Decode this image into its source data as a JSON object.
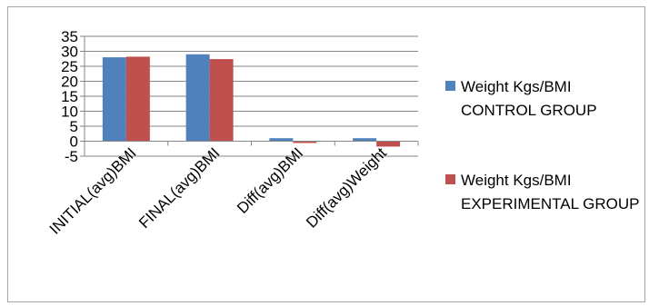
{
  "chart_data": {
    "type": "bar",
    "categories": [
      "INITIAL(avg)BMI",
      "FINAL(avg)BMI",
      "Diff(avg)BMI",
      "Diff(avg)Weight"
    ],
    "series": [
      {
        "name": "Weight Kgs/BMI CONTROL GROUP",
        "values": [
          28,
          29,
          1,
          1
        ],
        "color": "#4f81bd"
      },
      {
        "name": "Weight Kgs/BMI EXPERIMENTAL GROUP",
        "values": [
          28.2,
          27.4,
          -0.6,
          -1.8
        ],
        "color": "#c0504d"
      }
    ],
    "ylim": [
      -5,
      35
    ],
    "yticks": [
      -5,
      0,
      5,
      10,
      15,
      20,
      25,
      30,
      35
    ],
    "grid": true,
    "legend_position": "right"
  }
}
